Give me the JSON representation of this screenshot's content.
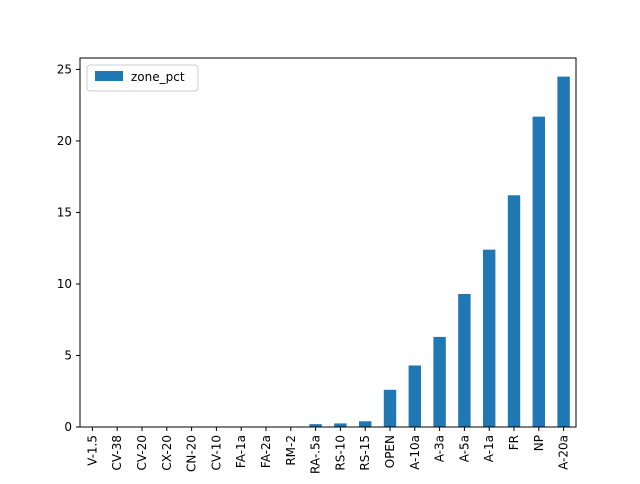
{
  "chart_data": {
    "type": "bar",
    "title": "",
    "xlabel": "",
    "ylabel": "",
    "legend": {
      "entries": [
        "zone_pct"
      ],
      "placement": "top-left"
    },
    "categories": [
      "V-1.5",
      "CV-38",
      "CV-20",
      "CX-20",
      "CN-20",
      "CV-10",
      "FA-1a",
      "FA-2a",
      "RM-2",
      "RA-.5a",
      "RS-10",
      "RS-15",
      "OPEN",
      "A-10a",
      "A-3a",
      "A-5a",
      "A-1a",
      "FR",
      "NP",
      "A-20a"
    ],
    "series": [
      {
        "name": "zone_pct",
        "color": "#1f77b4",
        "values": [
          0,
          0,
          0,
          0,
          0,
          0,
          0,
          0,
          0,
          0.2,
          0.25,
          0.4,
          2.6,
          4.3,
          6.3,
          9.3,
          12.4,
          16.2,
          21.7,
          24.5
        ]
      }
    ],
    "ylim": [
      0,
      25.8
    ],
    "yticks": [
      0,
      5,
      10,
      15,
      20,
      25
    ],
    "grid": false
  }
}
